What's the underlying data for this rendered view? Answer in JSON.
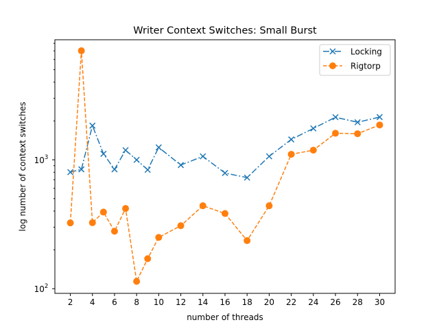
{
  "chart_data": {
    "type": "line",
    "title": "Writer Context Switches: Small Burst",
    "xlabel": "number of threads",
    "ylabel": "log number of context switches",
    "yscale": "log",
    "xlim": [
      0.6,
      31.4
    ],
    "ylim": [
      92,
      8530
    ],
    "xticks": [
      2,
      4,
      6,
      8,
      10,
      12,
      14,
      16,
      18,
      20,
      22,
      24,
      26,
      28,
      30
    ],
    "yticks": [
      {
        "value": 100,
        "base": "10",
        "exp": "2"
      },
      {
        "value": 1000,
        "base": "10",
        "exp": "3"
      }
    ],
    "x": [
      2,
      3,
      4,
      5,
      6,
      7,
      8,
      9,
      10,
      12,
      14,
      16,
      18,
      20,
      22,
      24,
      26,
      28,
      30
    ],
    "legend_position": "top-right",
    "series": [
      {
        "name": "Locking",
        "color": "#1f77b4",
        "marker": "x",
        "linestyle": "dashdot",
        "values": [
          802,
          843,
          1840,
          1112,
          843,
          1187,
          998,
          836,
          1247,
          910,
          1063,
          789,
          727,
          1063,
          1438,
          1750,
          2138,
          1954,
          2144
        ]
      },
      {
        "name": "Rigtorp",
        "color": "#ff7f0e",
        "marker": "o",
        "linestyle": "dashed",
        "values": [
          324,
          7010,
          325,
          393,
          279,
          419,
          114,
          171,
          250,
          308,
          440,
          383,
          236,
          440,
          1103,
          1187,
          1606,
          1593,
          1862
        ]
      }
    ]
  }
}
